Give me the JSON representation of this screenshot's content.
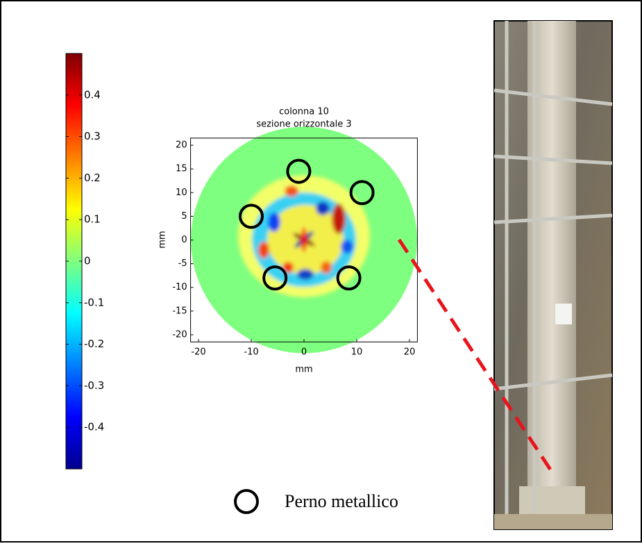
{
  "chart_data": {
    "type": "heatmap",
    "title": [
      "colonna 10",
      "sezione orizzontale 3"
    ],
    "xlabel": "mm",
    "ylabel": "mm",
    "xlim": [
      -21.5,
      21.5
    ],
    "ylim": [
      -21.5,
      21.5
    ],
    "xticks": [
      -20,
      -10,
      0,
      10,
      20
    ],
    "yticks": [
      20,
      15,
      10,
      5,
      0,
      -5,
      -10,
      -15,
      -20
    ],
    "colorbar": {
      "lim": [
        -0.5,
        0.5
      ],
      "ticks": [
        0.4,
        0.3,
        0.2,
        0.1,
        0,
        -0.1,
        -0.2,
        -0.3,
        -0.4
      ]
    },
    "series": [
      {
        "name": "Perno metallico",
        "color": "#000000",
        "x": [
          -1,
          11,
          -10,
          -5.5,
          8.5
        ],
        "values": [
          14.5,
          10,
          5,
          -8,
          -8
        ]
      }
    ]
  }
}
